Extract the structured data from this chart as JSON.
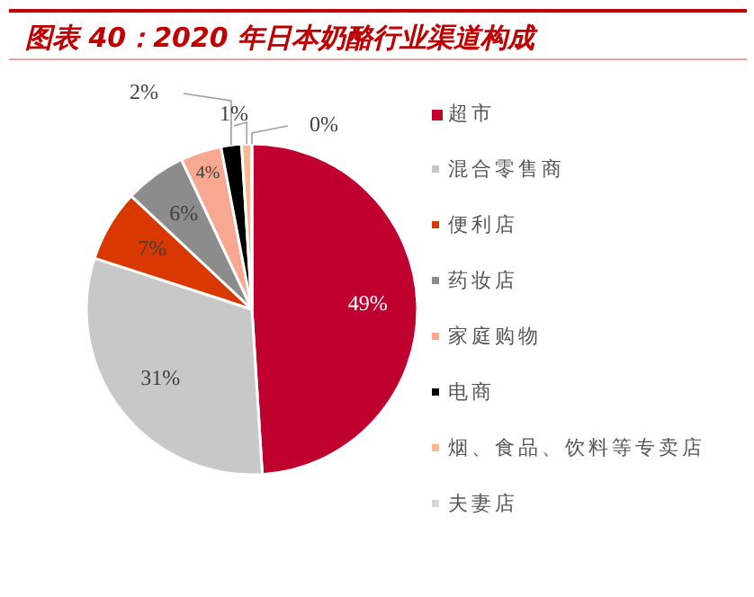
{
  "chart_data": {
    "type": "pie",
    "title": "图表 40：2020 年日本奶酪行业渠道构成",
    "categories": [
      "超市",
      "混合零售商",
      "便利店",
      "药妆店",
      "家庭购物",
      "电商",
      "烟、食品、饮料等专卖店",
      "夫妻店"
    ],
    "values": [
      49,
      31,
      7,
      6,
      4,
      2,
      1,
      0
    ],
    "colors": [
      "#c0002f",
      "#c8c8c8",
      "#d93800",
      "#8c8c8c",
      "#f8a890",
      "#000000",
      "#f9b98f",
      "#d4d4d4"
    ],
    "value_labels": [
      "49%",
      "31%",
      "7%",
      "6%",
      "4%",
      "2%",
      "1%",
      "0%"
    ],
    "legend": "right"
  }
}
